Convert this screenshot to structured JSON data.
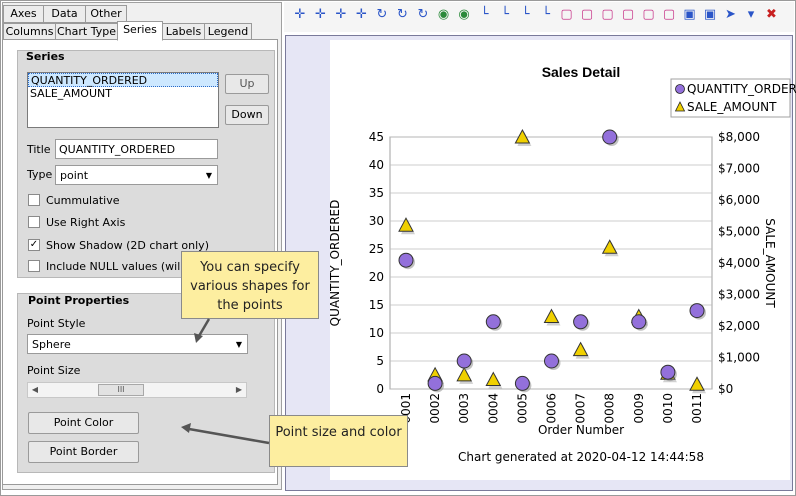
{
  "tabs_row1": [
    "Axes",
    "Data",
    "Other"
  ],
  "tabs_row2": [
    "Columns",
    "Chart Type",
    "Series",
    "Labels",
    "Legend"
  ],
  "series_panel": {
    "title": "Series",
    "list_items": [
      "QUANTITY_ORDERED",
      "SALE_AMOUNT"
    ],
    "up_label": "Up",
    "down_label": "Down",
    "title_label": "Title",
    "title_value": "QUANTITY_ORDERED",
    "type_label": "Type",
    "type_value": "point",
    "cumulative_label": "Cummulative",
    "right_axis_label": "Use Right Axis",
    "shadow_label": "Show Shadow (2D chart only)",
    "null_label": "Include NULL values (will be",
    "shadow_checked": true
  },
  "point_panel": {
    "title": "Point Properties",
    "style_label": "Point Style",
    "style_value": "Sphere",
    "size_label": "Point Size",
    "color_button": "Point Color",
    "border_button": "Point Border",
    "thumb_glyph": "III"
  },
  "callouts": {
    "shapes": "You can specify various shapes for the points",
    "size": "Point size and color"
  },
  "toolbar_icons": [
    "move-icon",
    "move-icon",
    "move-icon",
    "move-icon",
    "rotate-icon",
    "rotate-icon",
    "rotate-icon",
    "eye-icon",
    "eye-icon",
    "axis-icon",
    "axis-icon",
    "axis-icon",
    "axis-icon",
    "frame-icon",
    "frame-icon",
    "frame-icon",
    "frame-icon",
    "frame-icon",
    "frame-icon",
    "cube-icon",
    "cube-icon",
    "pointer-icon",
    "dropdown-icon",
    "delete-icon"
  ],
  "chart_data": {
    "type": "scatter",
    "title": "Sales Detail",
    "xlabel": "Order Number",
    "ylabel_left": "QUANTITY_ORDERED",
    "ylabel_right": "SALE_AMOUNT",
    "categories": [
      "0001",
      "0002",
      "0003",
      "0004",
      "0005",
      "0006",
      "0007",
      "0008",
      "0009",
      "0010",
      "0011"
    ],
    "ylim_left": [
      0,
      45
    ],
    "yticks_left": [
      "0",
      "5",
      "10",
      "15",
      "20",
      "25",
      "30",
      "35",
      "40",
      "45"
    ],
    "ylim_right": [
      0,
      8000
    ],
    "yticks_right": [
      "$0",
      "$1,000",
      "$2,000",
      "$3,000",
      "$4,000",
      "$5,000",
      "$6,000",
      "$7,000",
      "$8,000"
    ],
    "series": [
      {
        "name": "QUANTITY_ORDERED",
        "marker": "circle",
        "color": "#9370DB",
        "axis": "left",
        "values": [
          23,
          1,
          5,
          12,
          1,
          5,
          12,
          45,
          12,
          3,
          14
        ]
      },
      {
        "name": "SALE_AMOUNT",
        "marker": "triangle",
        "color": "#F0D000",
        "axis": "right",
        "values": [
          5200,
          450,
          450,
          300,
          8000,
          2300,
          1250,
          4500,
          2300,
          500,
          150
        ]
      }
    ],
    "legend_position": "top-right",
    "footer": "Chart generated at 2020-04-12 14:44:58"
  }
}
